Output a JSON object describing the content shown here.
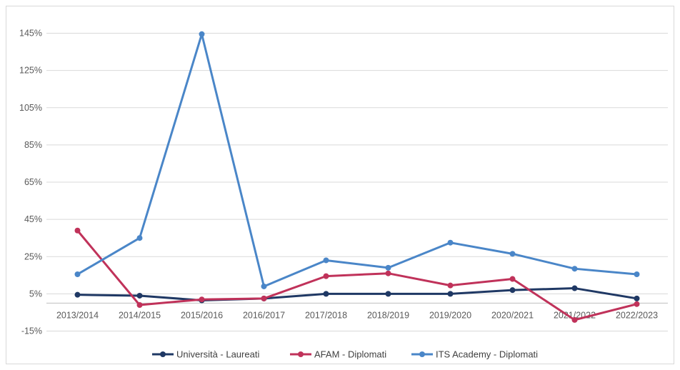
{
  "chart_data": {
    "type": "line",
    "title": "",
    "xlabel": "",
    "ylabel": "",
    "categories": [
      "2013/2014",
      "2014/2015",
      "2015/2016",
      "2016/2017",
      "2017/2018",
      "2018/2019",
      "2019/2020",
      "2020/2021",
      "2021/2022",
      "2022/2023"
    ],
    "y_ticks": [
      "-15%",
      "5%",
      "25%",
      "45%",
      "65%",
      "85%",
      "105%",
      "125%",
      "145%"
    ],
    "ylim": [
      -15,
      145
    ],
    "x_axis_at": 0,
    "grid": true,
    "legend_position": "bottom",
    "series": [
      {
        "name": "Università - Laureati",
        "color": "#1f3864",
        "values": [
          4.5,
          4,
          1.5,
          2.5,
          5,
          5,
          5,
          7,
          8,
          2.5
        ]
      },
      {
        "name": "AFAM - Diplomati",
        "color": "#c0325a",
        "values": [
          39,
          -1,
          2,
          2.5,
          14.5,
          16,
          9.5,
          13,
          -9,
          -0.5
        ]
      },
      {
        "name": "ITS Academy - Diplomati",
        "color": "#4a86c8",
        "values": [
          15.5,
          35,
          144.5,
          9,
          23,
          19,
          32.5,
          26.5,
          18.5,
          15.5
        ]
      }
    ]
  }
}
